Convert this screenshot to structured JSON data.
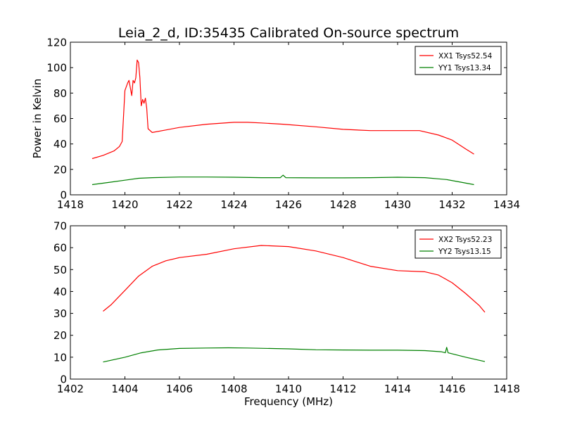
{
  "title": "Leia_2_d, ID:35435 Calibrated On-source spectrum",
  "chart_data": [
    {
      "type": "line",
      "ylabel": "Power in Kelvin",
      "xlabel": "",
      "xlim": [
        1418,
        1434
      ],
      "ylim": [
        0,
        120
      ],
      "xticks": [
        "1418",
        "1420",
        "1422",
        "1424",
        "1426",
        "1428",
        "1430",
        "1432",
        "1434"
      ],
      "yticks": [
        "0",
        "20",
        "40",
        "60",
        "80",
        "100",
        "120"
      ],
      "legend_position": "top-right",
      "series": [
        {
          "name": "XX1 Tsys52.54",
          "color": "#ff0000",
          "points": [
            [
              1418.8,
              28.5
            ],
            [
              1419.2,
              31
            ],
            [
              1419.6,
              34.5
            ],
            [
              1419.8,
              38
            ],
            [
              1419.9,
              42
            ],
            [
              1420.0,
              82
            ],
            [
              1420.1,
              88
            ],
            [
              1420.15,
              90
            ],
            [
              1420.25,
              78
            ],
            [
              1420.3,
              90
            ],
            [
              1420.35,
              88
            ],
            [
              1420.4,
              92
            ],
            [
              1420.45,
              106
            ],
            [
              1420.5,
              104
            ],
            [
              1420.55,
              92
            ],
            [
              1420.6,
              70
            ],
            [
              1420.65,
              75
            ],
            [
              1420.7,
              72
            ],
            [
              1420.75,
              76
            ],
            [
              1420.8,
              68
            ],
            [
              1420.85,
              52
            ],
            [
              1421.0,
              49
            ],
            [
              1421.5,
              51
            ],
            [
              1422.0,
              53
            ],
            [
              1423.0,
              55.5
            ],
            [
              1424.0,
              57
            ],
            [
              1424.5,
              57
            ],
            [
              1425.0,
              56.5
            ],
            [
              1425.8,
              55.5
            ],
            [
              1427.0,
              53.5
            ],
            [
              1428.0,
              51.5
            ],
            [
              1429.0,
              50.5
            ],
            [
              1430.0,
              50.5
            ],
            [
              1430.8,
              50.5
            ],
            [
              1431.5,
              47
            ],
            [
              1432.0,
              43
            ],
            [
              1432.5,
              36
            ],
            [
              1432.8,
              32
            ]
          ]
        },
        {
          "name": "YY1 Tsys13.34",
          "color": "#008000",
          "points": [
            [
              1418.8,
              8
            ],
            [
              1419.5,
              10
            ],
            [
              1420.0,
              11.5
            ],
            [
              1420.5,
              13
            ],
            [
              1421.0,
              13.5
            ],
            [
              1422.0,
              14
            ],
            [
              1423.0,
              14
            ],
            [
              1424.0,
              13.8
            ],
            [
              1425.0,
              13.5
            ],
            [
              1425.7,
              13.5
            ],
            [
              1425.8,
              15.5
            ],
            [
              1425.9,
              13.5
            ],
            [
              1427.0,
              13.3
            ],
            [
              1428.0,
              13.3
            ],
            [
              1429.0,
              13.5
            ],
            [
              1430.0,
              13.8
            ],
            [
              1431.0,
              13.5
            ],
            [
              1431.8,
              12
            ],
            [
              1432.3,
              10
            ],
            [
              1432.8,
              8
            ]
          ]
        }
      ]
    },
    {
      "type": "line",
      "ylabel": "",
      "xlabel": "Frequency (MHz)",
      "xlim": [
        1402,
        1418
      ],
      "ylim": [
        0,
        70
      ],
      "xticks": [
        "1402",
        "1404",
        "1406",
        "1408",
        "1410",
        "1412",
        "1414",
        "1416",
        "1418"
      ],
      "yticks": [
        "0",
        "10",
        "20",
        "30",
        "40",
        "50",
        "60",
        "70"
      ],
      "legend_position": "top-right",
      "series": [
        {
          "name": "XX2 Tsys52.23",
          "color": "#ff0000",
          "points": [
            [
              1403.2,
              31
            ],
            [
              1403.5,
              34
            ],
            [
              1404.0,
              40.5
            ],
            [
              1404.5,
              47
            ],
            [
              1405.0,
              51.5
            ],
            [
              1405.5,
              54
            ],
            [
              1406.0,
              55.5
            ],
            [
              1407.0,
              57
            ],
            [
              1408.0,
              59.5
            ],
            [
              1409.0,
              61
            ],
            [
              1410.0,
              60.5
            ],
            [
              1411.0,
              58.5
            ],
            [
              1412.0,
              55.5
            ],
            [
              1413.0,
              51.5
            ],
            [
              1414.0,
              49.5
            ],
            [
              1415.0,
              49
            ],
            [
              1415.5,
              47.5
            ],
            [
              1416.0,
              44
            ],
            [
              1416.5,
              39
            ],
            [
              1417.0,
              33.5
            ],
            [
              1417.2,
              30.5
            ]
          ]
        },
        {
          "name": "YY2 Tsys13.15",
          "color": "#008000",
          "points": [
            [
              1403.2,
              7.8
            ],
            [
              1404.0,
              10
            ],
            [
              1404.6,
              12
            ],
            [
              1405.2,
              13.3
            ],
            [
              1406.0,
              14
            ],
            [
              1407.0,
              14.2
            ],
            [
              1407.8,
              14.3
            ],
            [
              1408.5,
              14.2
            ],
            [
              1410.0,
              13.8
            ],
            [
              1411.0,
              13.4
            ],
            [
              1412.0,
              13.3
            ],
            [
              1413.0,
              13.2
            ],
            [
              1414.0,
              13.2
            ],
            [
              1415.0,
              13
            ],
            [
              1415.6,
              12.5
            ],
            [
              1415.75,
              12
            ],
            [
              1415.8,
              14.5
            ],
            [
              1415.85,
              12
            ],
            [
              1416.5,
              10
            ],
            [
              1417.2,
              8
            ]
          ]
        }
      ]
    }
  ]
}
